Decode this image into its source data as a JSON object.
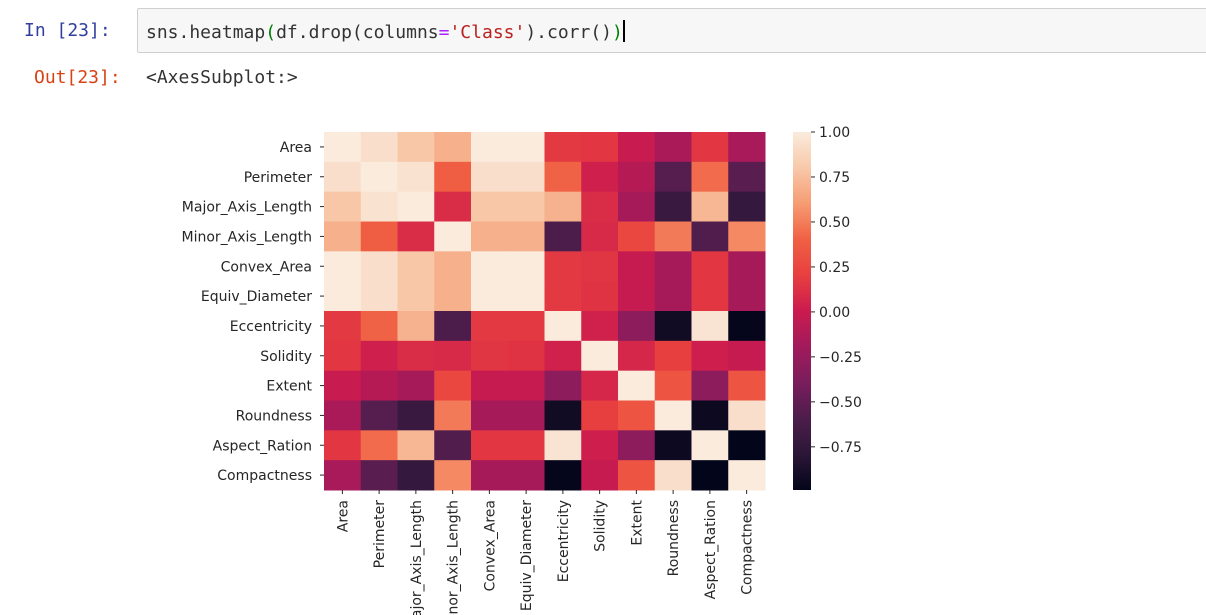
{
  "cell": {
    "in_prompt": "In  [23]:",
    "out_prompt": "Out[23]:",
    "code": {
      "func": "sns.heatmap",
      "p1": "(",
      "arg": "df.drop(columns",
      "eq": "=",
      "str": "'Class'",
      "tail": ").corr()",
      "p2": ")"
    },
    "output_text": "<AxesSubplot:>"
  },
  "chart_data": {
    "type": "heatmap",
    "title": "",
    "xlabel": "",
    "ylabel": "",
    "labels": [
      "Area",
      "Perimeter",
      "Major_Axis_Length",
      "Minor_Axis_Length",
      "Convex_Area",
      "Equiv_Diameter",
      "Eccentricity",
      "Solidity",
      "Extent",
      "Roundness",
      "Aspect_Ration",
      "Compactness"
    ],
    "values": [
      [
        1.0,
        0.93,
        0.79,
        0.69,
        1.0,
        1.0,
        0.17,
        0.16,
        -0.01,
        -0.15,
        0.16,
        -0.16
      ],
      [
        0.93,
        1.0,
        0.95,
        0.39,
        0.93,
        0.93,
        0.41,
        0.03,
        -0.1,
        -0.55,
        0.44,
        -0.53
      ],
      [
        0.79,
        0.95,
        1.0,
        0.1,
        0.79,
        0.79,
        0.7,
        0.1,
        -0.17,
        -0.7,
        0.72,
        -0.73
      ],
      [
        0.69,
        0.39,
        0.1,
        1.0,
        0.69,
        0.69,
        -0.59,
        0.09,
        0.25,
        0.49,
        -0.57,
        0.54
      ],
      [
        1.0,
        0.93,
        0.79,
        0.69,
        1.0,
        1.0,
        0.17,
        0.15,
        -0.02,
        -0.17,
        0.16,
        -0.17
      ],
      [
        1.0,
        0.93,
        0.79,
        0.69,
        1.0,
        1.0,
        0.17,
        0.14,
        -0.02,
        -0.17,
        0.16,
        -0.17
      ],
      [
        0.17,
        0.41,
        0.7,
        -0.59,
        0.17,
        0.17,
        1.0,
        0.04,
        -0.3,
        -0.92,
        0.96,
        -0.98
      ],
      [
        0.16,
        0.03,
        0.1,
        0.09,
        0.15,
        0.14,
        0.04,
        1.0,
        0.07,
        0.2,
        0.02,
        -0.02
      ],
      [
        -0.01,
        -0.1,
        -0.17,
        0.25,
        -0.02,
        -0.02,
        -0.3,
        0.07,
        1.0,
        0.33,
        -0.3,
        0.33
      ],
      [
        -0.15,
        -0.55,
        -0.7,
        0.49,
        -0.17,
        -0.17,
        -0.92,
        0.2,
        0.33,
        1.0,
        -0.94,
        0.93
      ],
      [
        0.16,
        0.44,
        0.72,
        -0.57,
        0.16,
        0.16,
        0.96,
        0.02,
        -0.3,
        -0.94,
        1.0,
        -0.99
      ],
      [
        -0.16,
        -0.53,
        -0.73,
        0.54,
        -0.17,
        -0.17,
        -0.98,
        -0.02,
        0.33,
        0.93,
        -0.99,
        1.0
      ]
    ],
    "vmin": -0.99,
    "vmax": 1.0,
    "colormap": "rocket",
    "colorbar_ticks": [
      "1.00",
      "0.75",
      "0.50",
      "0.25",
      "0.00",
      "−0.25",
      "−0.50",
      "−0.75"
    ],
    "colorbar_tick_values": [
      1.0,
      0.75,
      0.5,
      0.25,
      0.0,
      -0.25,
      -0.5,
      -0.75
    ],
    "grid": false,
    "legend": "colorbar-right"
  }
}
